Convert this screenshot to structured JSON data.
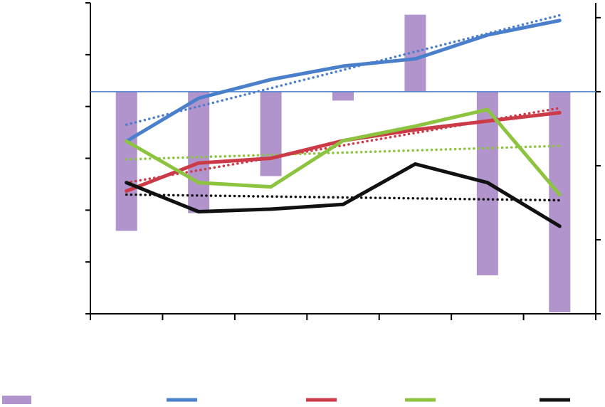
{
  "chart_data": {
    "type": "bar+line",
    "title": "",
    "xlabel": "",
    "ylabel": "",
    "categories": [
      "",
      "",
      "",
      "",
      "",
      "",
      ""
    ],
    "grid": false,
    "legend_placement": "bottom",
    "bar_series": {
      "name": "",
      "color": "#b294cc",
      "axis": "right",
      "values": [
        -0.94,
        -0.82,
        -0.57,
        -0.06,
        0.52,
        -1.24,
        -1.49
      ]
    },
    "line_series": [
      {
        "name": "",
        "color": "#4a7fcc",
        "axis": "left",
        "values": [
          3.33,
          4.16,
          4.52,
          4.78,
          4.92,
          5.38,
          5.66
        ],
        "trend": [
          3.65,
          5.76
        ]
      },
      {
        "name": "",
        "color": "#cc3a48",
        "axis": "left",
        "values": [
          2.37,
          2.91,
          3.0,
          3.34,
          3.55,
          3.72,
          3.88
        ],
        "trend": [
          2.53,
          3.97
        ]
      },
      {
        "name": "",
        "color": "#8cc43f",
        "axis": "left",
        "values": [
          3.33,
          2.53,
          2.45,
          3.34,
          3.62,
          3.94,
          2.3
        ],
        "trend": [
          2.98,
          3.24
        ]
      },
      {
        "name": "",
        "color": "#111111",
        "axis": "left",
        "values": [
          2.53,
          1.97,
          2.02,
          2.11,
          2.89,
          2.53,
          1.69
        ],
        "trend": [
          2.3,
          2.19
        ]
      }
    ],
    "left_axis": {
      "ylim": [
        0.0,
        6.0
      ],
      "tick_step": 1
    },
    "right_axis": {
      "ylim": [
        -1.5,
        0.6
      ],
      "tick_step": 0.5
    }
  }
}
